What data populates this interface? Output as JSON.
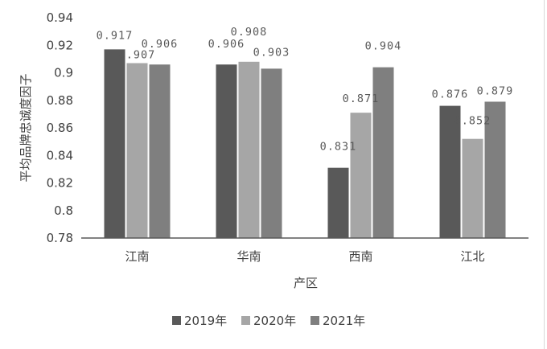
{
  "chart_data": {
    "type": "bar",
    "xlabel": "产区",
    "ylabel": "平均品牌忠诚度因子",
    "categories": [
      "江南",
      "华南",
      "西南",
      "江北"
    ],
    "ylim": [
      0.78,
      0.94
    ],
    "yticks": [
      "0.78",
      "0.8",
      "0.82",
      "0.84",
      "0.86",
      "0.88",
      "0.9",
      "0.92",
      "0.94"
    ],
    "grid": false,
    "legend_position": "bottom",
    "series": [
      {
        "name": "2019年",
        "color": "#595959",
        "values": [
          0.917,
          0.906,
          0.831,
          0.876
        ],
        "labels": [
          "0.917",
          "0.906",
          "0.831",
          "0.876"
        ]
      },
      {
        "name": "2020年",
        "color": "#a6a6a6",
        "values": [
          0.907,
          0.908,
          0.871,
          0.852
        ],
        "labels": [
          "0.907",
          "0.908",
          "0.871",
          "0.852"
        ]
      },
      {
        "name": "2021年",
        "color": "#7f7f7f",
        "values": [
          0.906,
          0.903,
          0.904,
          0.879
        ],
        "labels": [
          "0.906",
          "0.903",
          "0.904",
          "0.879"
        ]
      }
    ]
  }
}
